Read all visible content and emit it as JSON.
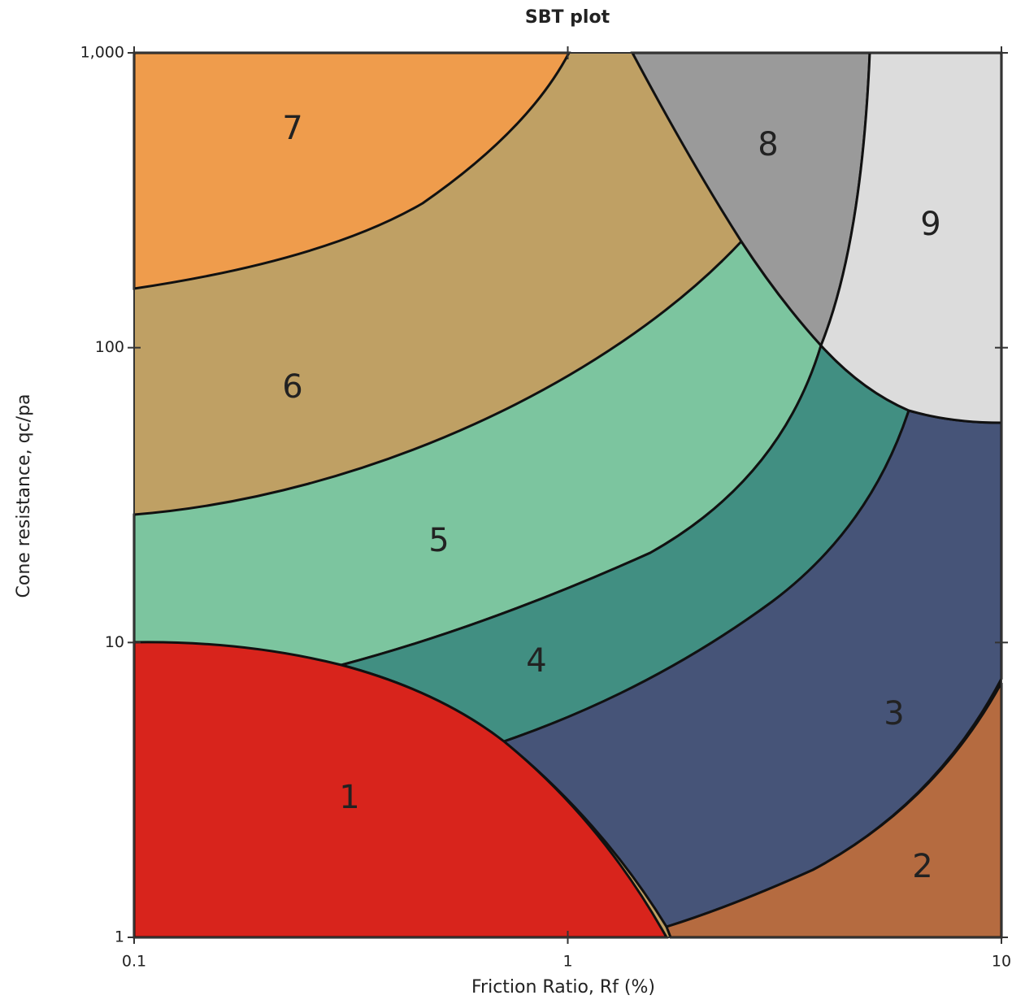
{
  "chart_data": {
    "type": "region",
    "title": "SBT plot",
    "x_label": "Friction Ratio, Rf (%)",
    "y_label": "Cone resistance, qc/pa",
    "xscale": "log",
    "yscale": "log",
    "xlim": [
      0.1,
      10
    ],
    "ylim": [
      1,
      1000
    ],
    "xticks": [
      0.1,
      1,
      10
    ],
    "yticks": [
      1,
      10,
      100,
      {
        "value": 1000,
        "label": "1,000"
      }
    ],
    "zone_labels": [
      "1",
      "2",
      "3",
      "4",
      "5",
      "6",
      "7",
      "8",
      "9"
    ]
  }
}
